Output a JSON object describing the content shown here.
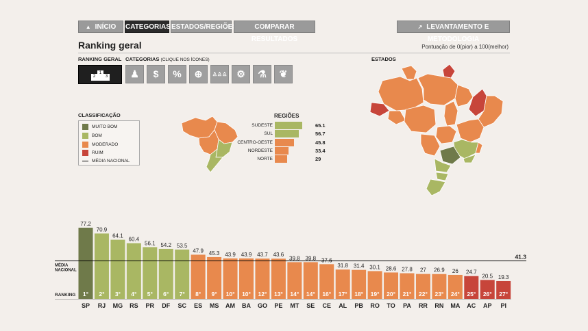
{
  "nav": {
    "inicio": "INÍCIO",
    "categorias": "CATEGORIAS",
    "estados_regioes": "ESTADOS/REGIÕES",
    "comparar": "COMPARAR RESULTADOS",
    "levantamento": "LEVANTAMENTO E METODOLOGIA"
  },
  "page_title": "Ranking geral",
  "score_note": "Pontuação de 0(pior) a 100(melhor)",
  "selector": {
    "ranking_label": "RANKING GERAL",
    "categorias_label": "CATEGORIAS",
    "categorias_hint": "(CLIQUE NOS ÍCONES)",
    "podium": [
      "2",
      "1",
      "3"
    ],
    "category_icons": [
      "person-icon",
      "dollar-icon",
      "percent-icon",
      "globe-icon",
      "people-icon",
      "gears-icon",
      "flask-icon",
      "leaf-icon"
    ],
    "category_glyphs": [
      "♟",
      "$",
      "%",
      "⊕",
      "♙♙♙",
      "⚙",
      "⚗",
      "❦"
    ]
  },
  "classification": {
    "title": "CLASSIFICAÇÃO",
    "items": [
      {
        "label": "MUITO BOM",
        "color": "#6f7a4a"
      },
      {
        "label": "BOM",
        "color": "#a9b763"
      },
      {
        "label": "MODERADO",
        "color": "#e8894d"
      },
      {
        "label": "RUIM",
        "color": "#c7453a"
      },
      {
        "label": "MÉDIA NACIONAL",
        "color": "#000000"
      }
    ]
  },
  "regions_title": "REGIÕES",
  "states_title": "ESTADOS",
  "colors": {
    "muito_bom": "#6f7a4a",
    "bom": "#a9b763",
    "moderado": "#e8894d",
    "ruim": "#c7453a"
  },
  "chart_data": [
    {
      "type": "bar",
      "title": "REGIÕES",
      "categories": [
        "SUDESTE",
        "SUL",
        "CENTRO-OESTE",
        "NORDESTE",
        "NORTE"
      ],
      "values": [
        65.1,
        56.7,
        45.8,
        33.4,
        29
      ],
      "classes": [
        "bom",
        "bom",
        "moderado",
        "moderado",
        "moderado"
      ]
    },
    {
      "type": "bar",
      "title": "Ranking geral",
      "categories": [
        "SP",
        "RJ",
        "MG",
        "RS",
        "PR",
        "DF",
        "SC",
        "ES",
        "MS",
        "AM",
        "BA",
        "GO",
        "PE",
        "MT",
        "SE",
        "CE",
        "AL",
        "PB",
        "RO",
        "TO",
        "PA",
        "RR",
        "RN",
        "MA",
        "AC",
        "AP",
        "PI"
      ],
      "values": [
        77.2,
        70.9,
        64.1,
        60.4,
        56.1,
        54.2,
        53.5,
        47.9,
        45.3,
        43.9,
        43.9,
        43.7,
        43.6,
        39.8,
        39.8,
        37.6,
        31.8,
        31.4,
        30.1,
        28.6,
        27.8,
        27,
        26.9,
        26,
        24.7,
        20.5,
        19.3
      ],
      "ranks": [
        "1°",
        "2°",
        "3°",
        "4°",
        "5°",
        "6°",
        "7°",
        "8°",
        "9°",
        "10°",
        "10°",
        "12°",
        "13°",
        "14°",
        "14°",
        "16°",
        "17°",
        "18°",
        "19°",
        "20°",
        "21°",
        "22°",
        "23°",
        "24°",
        "25°",
        "26°",
        "27°"
      ],
      "classes": [
        "muito_bom",
        "bom",
        "bom",
        "bom",
        "bom",
        "bom",
        "bom",
        "moderado",
        "moderado",
        "moderado",
        "moderado",
        "moderado",
        "moderado",
        "moderado",
        "moderado",
        "moderado",
        "moderado",
        "moderado",
        "moderado",
        "moderado",
        "moderado",
        "moderado",
        "moderado",
        "moderado",
        "ruim",
        "ruim",
        "ruim"
      ],
      "average_label": "MÉDIA NACIONAL",
      "average_value": 41.3,
      "ranking_label": "RANKING"
    }
  ]
}
